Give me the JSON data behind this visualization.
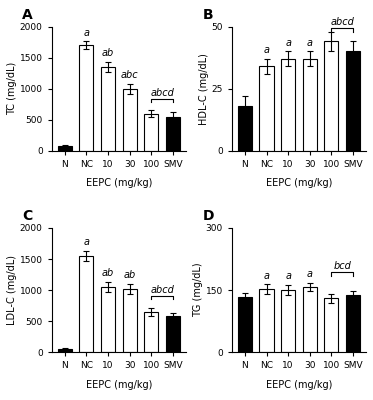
{
  "panels": [
    {
      "label": "A",
      "ylabel": "TC (mg/dL)",
      "ylim": [
        0,
        2000
      ],
      "yticks": [
        0,
        500,
        1000,
        1500,
        2000
      ],
      "categories": [
        "N",
        "NC",
        "10",
        "30",
        "100",
        "SMV"
      ],
      "values": [
        75,
        1700,
        1350,
        1000,
        600,
        550
      ],
      "errors": [
        20,
        60,
        80,
        80,
        60,
        70
      ],
      "bar_colors": [
        "black",
        "white",
        "white",
        "white",
        "white",
        "black"
      ],
      "sig_labels": [
        null,
        "a",
        "ab",
        "abc",
        null,
        null
      ],
      "bracket": {
        "bars": [
          4,
          5
        ],
        "label": "abcd",
        "y": 780
      },
      "xlabel_group": {
        "label": "EEPC (mg/kg)",
        "bars": [
          1,
          4
        ]
      }
    },
    {
      "label": "B",
      "ylabel": "HDL-C (mg/dL)",
      "ylim": [
        0,
        50
      ],
      "yticks": [
        0,
        25,
        50
      ],
      "categories": [
        "N",
        "NC",
        "10",
        "30",
        "100",
        "SMV"
      ],
      "values": [
        18,
        34,
        37,
        37,
        44,
        40
      ],
      "errors": [
        4,
        3,
        3,
        3,
        4,
        4
      ],
      "bar_colors": [
        "black",
        "white",
        "white",
        "white",
        "white",
        "black"
      ],
      "sig_labels": [
        null,
        "a",
        "a",
        "a",
        null,
        null
      ],
      "bracket": {
        "bars": [
          4,
          5
        ],
        "label": "abcd",
        "y": 48
      },
      "xlabel_group": {
        "label": "EEPC (mg/kg)",
        "bars": [
          1,
          4
        ]
      }
    },
    {
      "label": "C",
      "ylabel": "LDL-C (mg/dL)",
      "ylim": [
        0,
        2000
      ],
      "yticks": [
        0,
        500,
        1000,
        1500,
        2000
      ],
      "categories": [
        "N",
        "NC",
        "10",
        "30",
        "100",
        "SMV"
      ],
      "values": [
        50,
        1550,
        1050,
        1020,
        650,
        580
      ],
      "errors": [
        15,
        80,
        80,
        80,
        60,
        50
      ],
      "bar_colors": [
        "black",
        "white",
        "white",
        "white",
        "white",
        "black"
      ],
      "sig_labels": [
        null,
        "a",
        "ab",
        "ab",
        null,
        null
      ],
      "bracket": {
        "bars": [
          4,
          5
        ],
        "label": "abcd",
        "y": 850
      },
      "xlabel_group": {
        "label": "EEPC (mg/kg)",
        "bars": [
          1,
          4
        ]
      }
    },
    {
      "label": "D",
      "ylabel": "TG (mg/dL)",
      "ylim": [
        0,
        300
      ],
      "yticks": [
        0,
        150,
        300
      ],
      "categories": [
        "N",
        "NC",
        "10",
        "30",
        "100",
        "SMV"
      ],
      "values": [
        133,
        152,
        150,
        158,
        130,
        138
      ],
      "errors": [
        10,
        12,
        12,
        10,
        10,
        10
      ],
      "bar_colors": [
        "black",
        "white",
        "white",
        "white",
        "white",
        "black"
      ],
      "sig_labels": [
        null,
        "a",
        "a",
        "a",
        null,
        null
      ],
      "bracket": {
        "bars": [
          4,
          5
        ],
        "label": "bcd",
        "y": 185
      },
      "xlabel_group": {
        "label": "EEPC (mg/kg)",
        "bars": [
          1,
          4
        ]
      }
    }
  ],
  "bar_width": 0.65,
  "edgecolor": "black",
  "fontsize_label": 7,
  "fontsize_tick": 6.5,
  "fontsize_sig": 7,
  "fontsize_panel": 10
}
